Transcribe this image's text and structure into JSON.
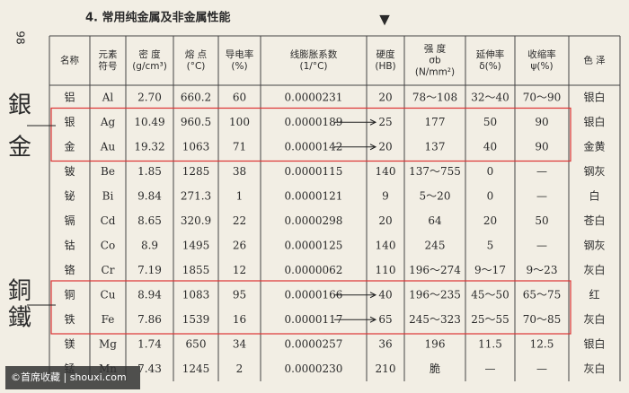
{
  "title": "4. 常用纯金属及非金属性能",
  "page_number": "98",
  "marker": "▼",
  "table": {
    "headers": [
      [
        "名称"
      ],
      [
        "元素",
        "符号"
      ],
      [
        "密 度",
        "(g/cm³)"
      ],
      [
        "熔 点",
        "(°C)"
      ],
      [
        "导电率",
        "(%)"
      ],
      [
        "线膨胀系数",
        "(1/°C)"
      ],
      [
        "硬度",
        "(HB)"
      ],
      [
        "强 度",
        "σb",
        "(N/mm²)"
      ],
      [
        "延伸率",
        "δ(%)"
      ],
      [
        "收缩率",
        "ψ(%)"
      ],
      [
        "色 泽"
      ]
    ],
    "rows": [
      [
        "铝",
        "Al",
        "2.70",
        "660.2",
        "60",
        "0.0000231",
        "20",
        "78～108",
        "32～40",
        "70～90",
        "银白"
      ],
      [
        "银",
        "Ag",
        "10.49",
        "960.5",
        "100",
        "0.0000189",
        "25",
        "177",
        "50",
        "90",
        "银白"
      ],
      [
        "金",
        "Au",
        "19.32",
        "1063",
        "71",
        "0.0000142",
        "20",
        "137",
        "40",
        "90",
        "金黄"
      ],
      [
        "铍",
        "Be",
        "1.85",
        "1285",
        "38",
        "0.0000115",
        "140",
        "137～755",
        "0",
        "—",
        "钢灰"
      ],
      [
        "铋",
        "Bi",
        "9.84",
        "271.3",
        "1",
        "0.0000121",
        "9",
        "5～20",
        "0",
        "—",
        "白"
      ],
      [
        "镉",
        "Cd",
        "8.65",
        "320.9",
        "22",
        "0.0000298",
        "20",
        "64",
        "20",
        "50",
        "苍白"
      ],
      [
        "钴",
        "Co",
        "8.9",
        "1495",
        "26",
        "0.0000125",
        "140",
        "245",
        "5",
        "—",
        "钢灰"
      ],
      [
        "铬",
        "Cr",
        "7.19",
        "1855",
        "12",
        "0.0000062",
        "110",
        "196～274",
        "9～17",
        "9～23",
        "灰白"
      ],
      [
        "铜",
        "Cu",
        "8.94",
        "1083",
        "95",
        "0.0000166",
        "40",
        "196～235",
        "45～50",
        "65～75",
        "红"
      ],
      [
        "铁",
        "Fe",
        "7.86",
        "1539",
        "16",
        "0.0000117",
        "65",
        "245～323",
        "25～55",
        "70～85",
        "灰白"
      ],
      [
        "镁",
        "Mg",
        "1.74",
        "650",
        "34",
        "0.0000257",
        "36",
        "196",
        "11.5",
        "12.5",
        "银白"
      ],
      [
        "锰",
        "Mn",
        "7.43",
        "1245",
        "2",
        "0.0000230",
        "210",
        "脆",
        "—",
        "—",
        "灰白"
      ]
    ]
  },
  "annotations": [
    "銀",
    "金",
    "銅",
    "鐵"
  ],
  "watermark": "©首席收藏 | shouxi.com"
}
